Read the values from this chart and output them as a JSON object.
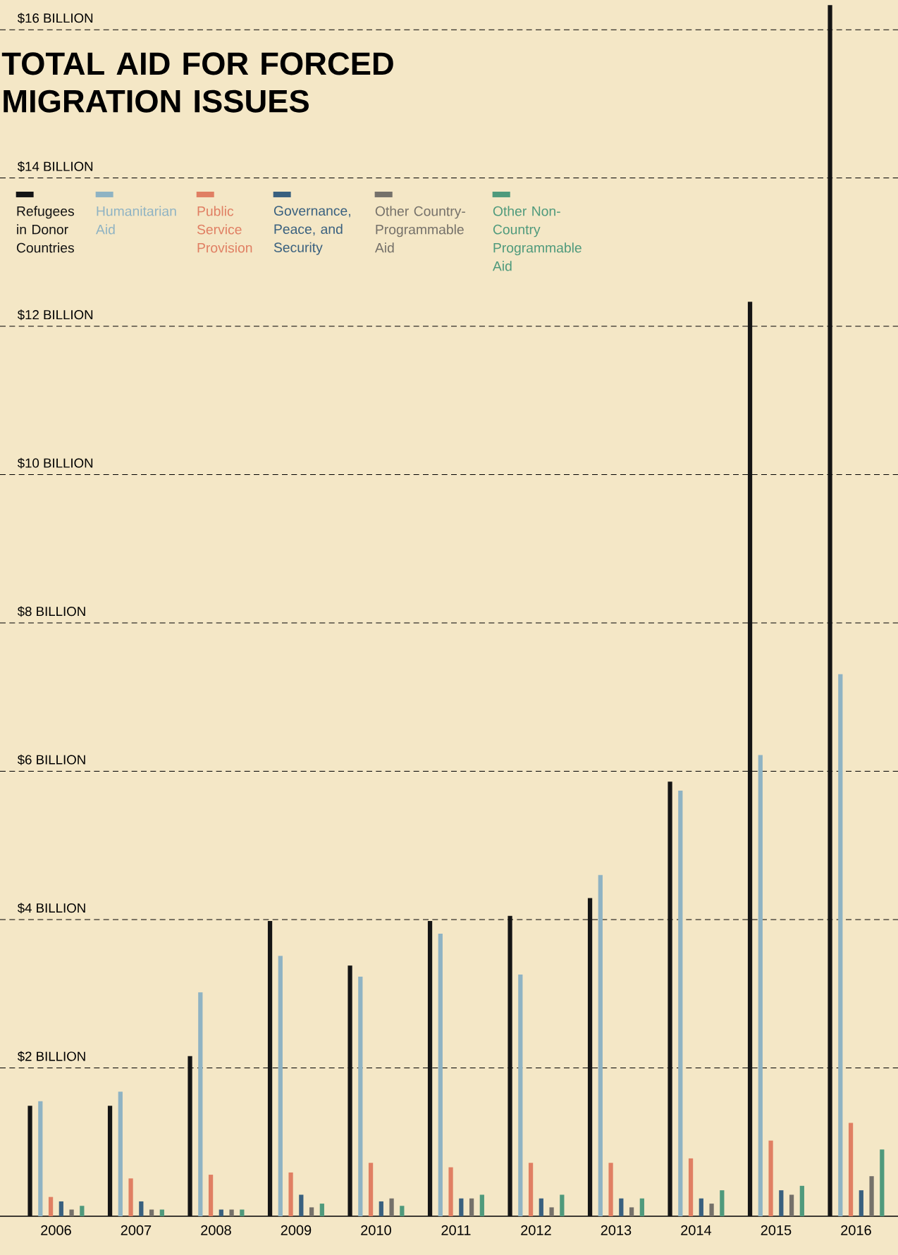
{
  "chart_data": {
    "type": "bar",
    "title": "TOTAL AID FOR FORCED MIGRATION ISSUES",
    "categories": [
      "2006",
      "2007",
      "2008",
      "2009",
      "2010",
      "2011",
      "2012",
      "2013",
      "2014",
      "2015",
      "2016"
    ],
    "series": [
      {
        "name": "Refugees in Donor Countries",
        "color": "#141414",
        "values": [
          1.49,
          1.49,
          2.16,
          3.98,
          3.38,
          3.98,
          4.05,
          4.29,
          5.86,
          12.33,
          16.33
        ]
      },
      {
        "name": "Humanitarian Aid",
        "color": "#8fb3c3",
        "values": [
          1.55,
          1.68,
          3.02,
          3.51,
          3.23,
          3.81,
          3.26,
          4.6,
          5.74,
          6.22,
          7.31
        ]
      },
      {
        "name": "Public Service Provision",
        "color": "#e07f63",
        "values": [
          0.26,
          0.51,
          0.56,
          0.59,
          0.72,
          0.66,
          0.72,
          0.72,
          0.78,
          1.02,
          1.26
        ]
      },
      {
        "name": "Governance, Peace, and Security",
        "color": "#39607f",
        "values": [
          0.2,
          0.2,
          0.09,
          0.29,
          0.2,
          0.24,
          0.24,
          0.24,
          0.24,
          0.35,
          0.35
        ]
      },
      {
        "name": "Other Country-Programmable Aid",
        "color": "#75716a",
        "values": [
          0.09,
          0.09,
          0.09,
          0.12,
          0.24,
          0.24,
          0.12,
          0.12,
          0.17,
          0.29,
          0.54
        ]
      },
      {
        "name": "Other Non-Country Programmable Aid",
        "color": "#4f9a7c",
        "values": [
          0.14,
          0.09,
          0.09,
          0.17,
          0.14,
          0.29,
          0.29,
          0.24,
          0.35,
          0.41,
          0.9
        ]
      }
    ],
    "ylim": [
      0,
      16.4
    ],
    "yticks": [
      {
        "value": 2,
        "label": "$2 BILLION"
      },
      {
        "value": 4,
        "label": "$4 BILLION"
      },
      {
        "value": 6,
        "label": "$6 BILLION"
      },
      {
        "value": 8,
        "label": "$8 BILLION"
      },
      {
        "value": 10,
        "label": "$10 BILLION"
      },
      {
        "value": 12,
        "label": "$12 BILLION"
      },
      {
        "value": 14,
        "label": "$14 BILLION"
      },
      {
        "value": 16,
        "label": "$16 BILLION"
      }
    ],
    "grid": "y",
    "legend": "top left"
  }
}
